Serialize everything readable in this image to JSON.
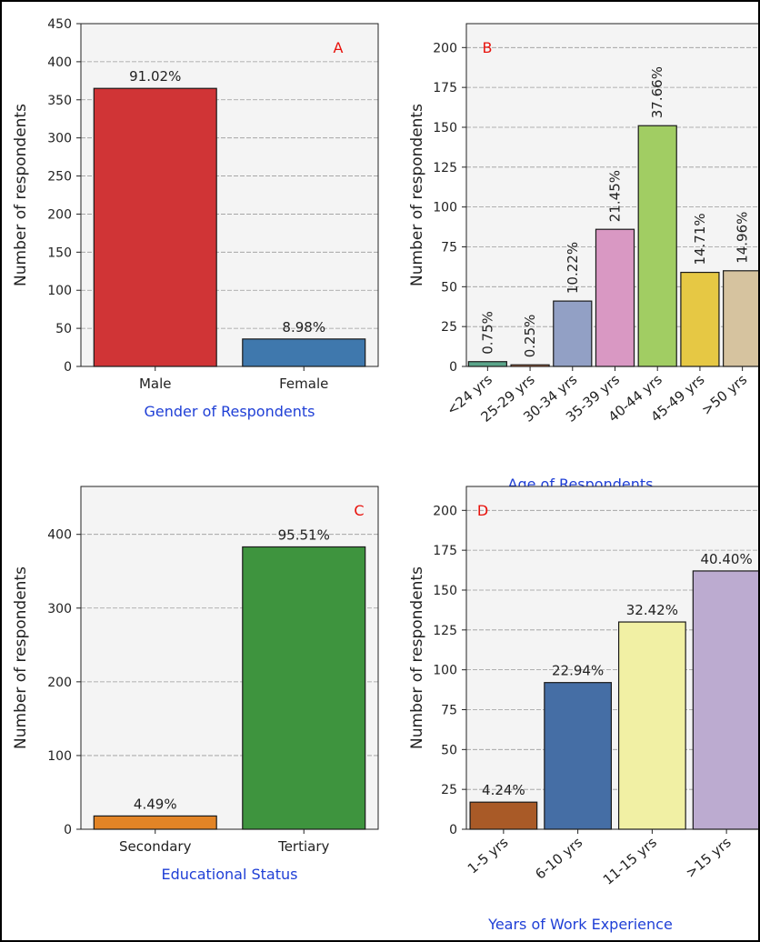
{
  "ylabel": "Number of respondents",
  "chart_data": [
    {
      "panel": "A",
      "type": "bar",
      "xlabel": "Gender of Respondents",
      "ylabel": "Number of respondents",
      "categories": [
        "Male",
        "Female"
      ],
      "values": [
        365,
        36
      ],
      "labels": [
        "91.02%",
        "8.98%"
      ],
      "colors": [
        "#d03436",
        "#3f78ad"
      ],
      "yticks": [
        0,
        50,
        100,
        150,
        200,
        250,
        300,
        350,
        400,
        450
      ],
      "ylim": [
        0,
        450
      ],
      "grid": true,
      "rotate_labels": false
    },
    {
      "panel": "B",
      "type": "bar",
      "xlabel": "Age of Respondents",
      "ylabel": "Number of respondents",
      "categories": [
        "<24 yrs",
        "25-29 yrs",
        "30-34 yrs",
        "35-39 yrs",
        "40-44 yrs",
        "45-49 yrs",
        ">50 yrs"
      ],
      "values": [
        3,
        1,
        41,
        86,
        151,
        59,
        60
      ],
      "labels": [
        "0.75%",
        "0.25%",
        "10.22%",
        "21.45%",
        "37.66%",
        "14.71%",
        "14.96%"
      ],
      "colors": [
        "#5aa58a",
        "#e98a58",
        "#92a0c5",
        "#d998c3",
        "#a1cd63",
        "#e6c844",
        "#d6c39f"
      ],
      "yticks": [
        0,
        25,
        50,
        75,
        100,
        125,
        150,
        175,
        200
      ],
      "ylim": [
        0,
        215
      ],
      "grid": true,
      "rotate_labels": true
    },
    {
      "panel": "C",
      "type": "bar",
      "xlabel": "Educational Status",
      "ylabel": "Number of respondents",
      "categories": [
        "Secondary",
        "Tertiary"
      ],
      "values": [
        18,
        383
      ],
      "labels": [
        "4.49%",
        "95.51%"
      ],
      "colors": [
        "#e28426",
        "#3e943e"
      ],
      "yticks": [
        0,
        100,
        200,
        300,
        400
      ],
      "ylim": [
        0,
        465
      ],
      "grid": true,
      "rotate_labels": false
    },
    {
      "panel": "D",
      "type": "bar",
      "xlabel": "Years of Work Experience",
      "ylabel": "Number of respondents",
      "categories": [
        "1-5 yrs",
        "6-10 yrs",
        "11-15 yrs",
        ">15 yrs"
      ],
      "values": [
        17,
        92,
        130,
        162
      ],
      "labels": [
        "4.24%",
        "22.94%",
        "32.42%",
        "40.40%"
      ],
      "colors": [
        "#a95a27",
        "#456ea5",
        "#f1f0a4",
        "#bcabd0"
      ],
      "yticks": [
        0,
        25,
        50,
        75,
        100,
        125,
        150,
        175,
        200
      ],
      "ylim": [
        0,
        215
      ],
      "grid": true,
      "rotate_labels": true
    }
  ]
}
